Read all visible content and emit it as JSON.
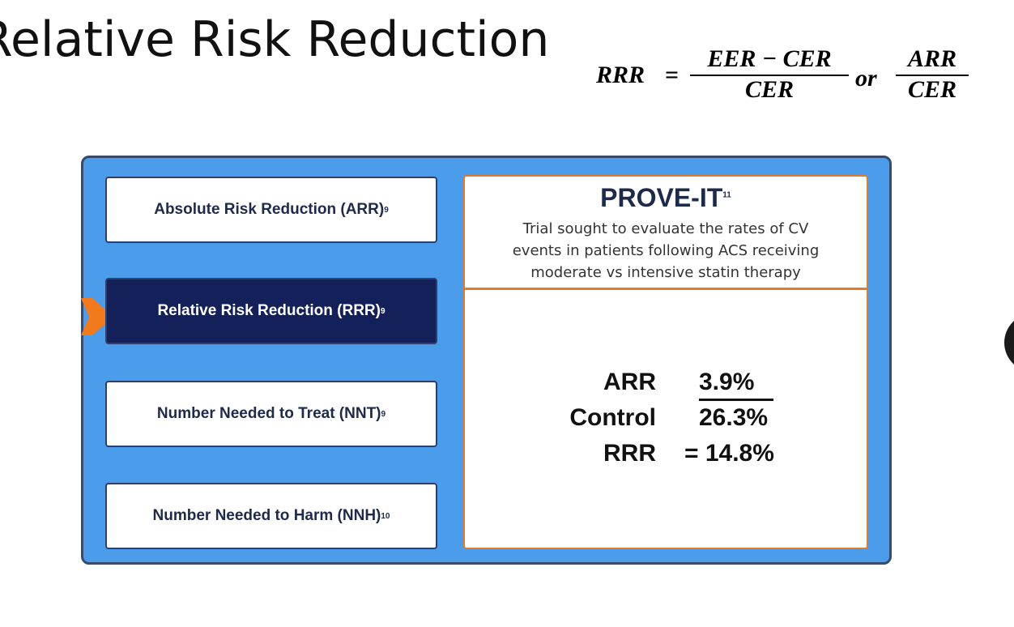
{
  "header": {
    "title": "Relative Risk Reduction"
  },
  "formula": {
    "lhs": "RRR",
    "equals": "=",
    "numerator_1": "EER − CER",
    "denominator_1": "CER",
    "connector": "or",
    "numerator_2": "ARR",
    "denominator_2": "CER"
  },
  "menu": {
    "items": [
      {
        "label": "Absolute Risk Reduction (ARR)",
        "ref": "9"
      },
      {
        "label": "Relative Risk Reduction (RRR)",
        "ref": "9"
      },
      {
        "label": "Number Needed to Treat (NNT)",
        "ref": "9"
      },
      {
        "label": "Number Needed to Harm (NNH)",
        "ref": "10"
      }
    ]
  },
  "panel": {
    "title": "PROVE-IT",
    "ref": "11",
    "description": [
      "Trial sought to evaluate the rates of CV",
      "events in patients following ACS receiving",
      "moderate vs intensive statin therapy"
    ],
    "rows": [
      [
        "ARR",
        "3.9%"
      ],
      [
        "Control",
        "26.3%"
      ],
      [
        "RRR",
        "= 14.8%"
      ]
    ]
  }
}
